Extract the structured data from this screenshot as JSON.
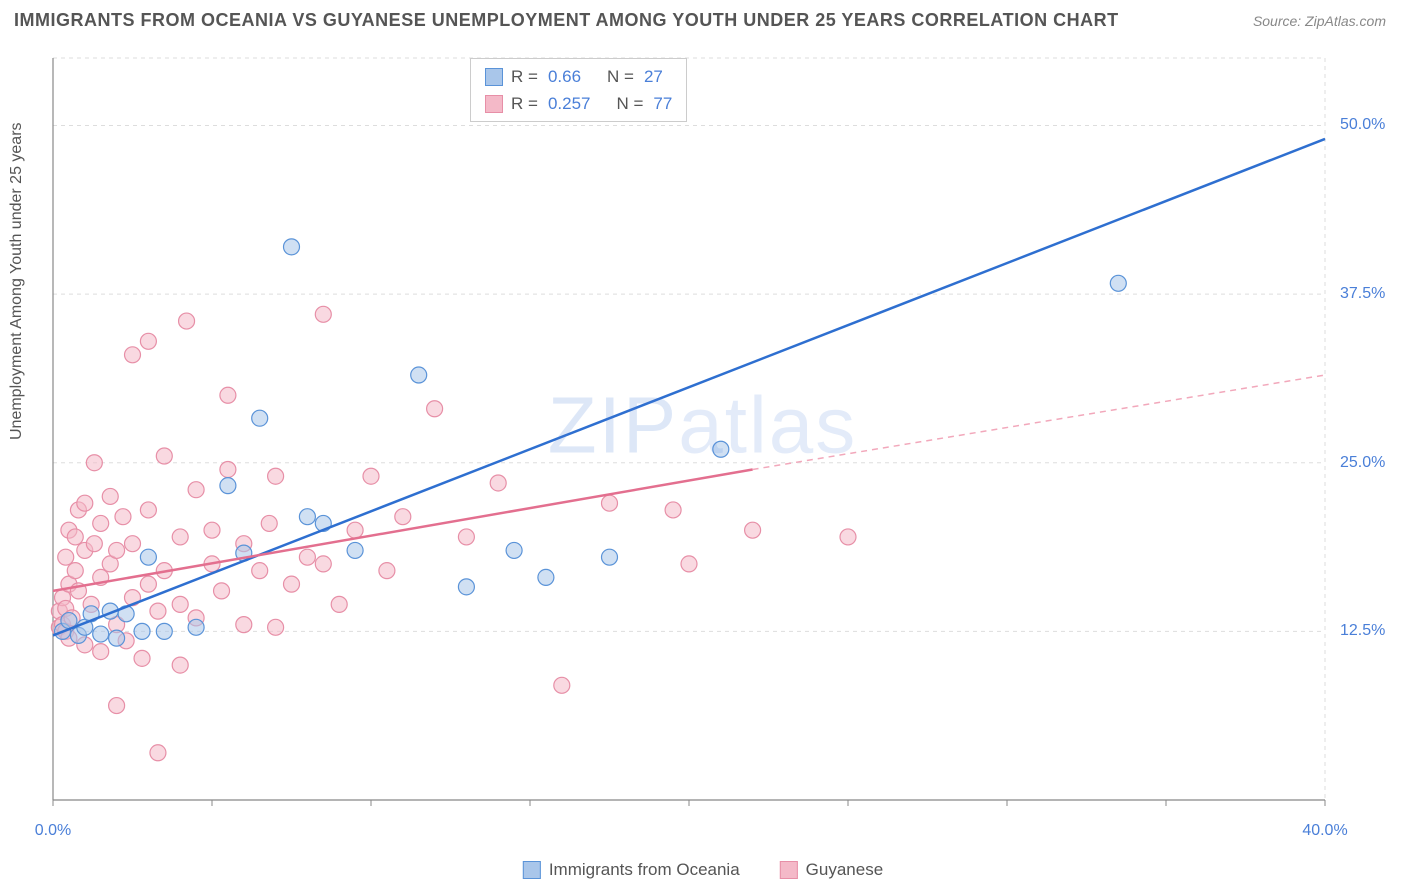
{
  "header": {
    "title": "IMMIGRANTS FROM OCEANIA VS GUYANESE UNEMPLOYMENT AMONG YOUTH UNDER 25 YEARS CORRELATION CHART",
    "source": "Source: ZipAtlas.com"
  },
  "watermark": {
    "bold": "ZIP",
    "light": "atlas"
  },
  "chart": {
    "type": "scatter",
    "y_axis_label": "Unemployment Among Youth under 25 years",
    "background_color": "#ffffff",
    "grid_color": "#dddddd",
    "axis_color": "#888888",
    "xlim": [
      0,
      40
    ],
    "ylim": [
      0,
      55
    ],
    "x_ticks": [
      {
        "v": 0,
        "label": "0.0%"
      },
      {
        "v": 40,
        "label": "40.0%"
      }
    ],
    "y_ticks": [
      {
        "v": 12.5,
        "label": "12.5%"
      },
      {
        "v": 25.0,
        "label": "25.0%"
      },
      {
        "v": 37.5,
        "label": "37.5%"
      },
      {
        "v": 50.0,
        "label": "50.0%"
      }
    ],
    "x_minor_tick_step": 5,
    "marker_radius": 8,
    "marker_opacity": 0.55,
    "line_width": 2.5,
    "series": [
      {
        "name": "Immigrants from Oceania",
        "color": "#5a93d8",
        "fill": "#a9c6ea",
        "stroke": "#5a93d8",
        "r": 0.66,
        "n": 27,
        "trend": {
          "x1": 0,
          "y1": 12.2,
          "x2": 40,
          "y2": 49.0,
          "dash": "none",
          "color": "#2e6fd0"
        },
        "points": [
          [
            0.3,
            12.5
          ],
          [
            0.5,
            13.3
          ],
          [
            0.8,
            12.2
          ],
          [
            1.0,
            12.8
          ],
          [
            1.2,
            13.8
          ],
          [
            1.5,
            12.3
          ],
          [
            1.8,
            14.0
          ],
          [
            2.0,
            12.0
          ],
          [
            2.3,
            13.8
          ],
          [
            2.8,
            12.5
          ],
          [
            3.0,
            18.0
          ],
          [
            3.5,
            12.5
          ],
          [
            4.5,
            12.8
          ],
          [
            5.5,
            23.3
          ],
          [
            6.0,
            18.3
          ],
          [
            6.5,
            28.3
          ],
          [
            7.5,
            41.0
          ],
          [
            8.0,
            21.0
          ],
          [
            8.5,
            20.5
          ],
          [
            9.5,
            18.5
          ],
          [
            11.5,
            31.5
          ],
          [
            13.0,
            15.8
          ],
          [
            14.5,
            18.5
          ],
          [
            15.5,
            16.5
          ],
          [
            17.5,
            18.0
          ],
          [
            21.0,
            26.0
          ],
          [
            33.5,
            38.3
          ]
        ]
      },
      {
        "name": "Guyanese",
        "color": "#e78fa7",
        "fill": "#f4b9c8",
        "stroke": "#e78fa7",
        "r": 0.257,
        "n": 77,
        "trend": {
          "x1": 0,
          "y1": 15.5,
          "x2": 22,
          "y2": 24.5,
          "dash": "none",
          "color": "#e36f8f"
        },
        "trend_ext": {
          "x1": 22,
          "y1": 24.5,
          "x2": 40,
          "y2": 31.5,
          "dash": "6 5",
          "color": "#f2a8bb"
        },
        "points": [
          [
            0.2,
            12.8
          ],
          [
            0.2,
            14.0
          ],
          [
            0.3,
            13.0
          ],
          [
            0.3,
            15.0
          ],
          [
            0.4,
            12.5
          ],
          [
            0.4,
            14.2
          ],
          [
            0.4,
            18.0
          ],
          [
            0.5,
            12.0
          ],
          [
            0.5,
            16.0
          ],
          [
            0.5,
            20.0
          ],
          [
            0.6,
            13.5
          ],
          [
            0.7,
            17.0
          ],
          [
            0.7,
            19.5
          ],
          [
            0.8,
            15.5
          ],
          [
            0.8,
            21.5
          ],
          [
            1.0,
            11.5
          ],
          [
            1.0,
            18.5
          ],
          [
            1.0,
            22.0
          ],
          [
            1.2,
            14.5
          ],
          [
            1.3,
            19.0
          ],
          [
            1.3,
            25.0
          ],
          [
            1.5,
            11.0
          ],
          [
            1.5,
            16.5
          ],
          [
            1.5,
            20.5
          ],
          [
            1.8,
            17.5
          ],
          [
            1.8,
            22.5
          ],
          [
            2.0,
            7.0
          ],
          [
            2.0,
            13.0
          ],
          [
            2.0,
            18.5
          ],
          [
            2.2,
            21.0
          ],
          [
            2.3,
            11.8
          ],
          [
            2.5,
            15.0
          ],
          [
            2.5,
            19.0
          ],
          [
            2.5,
            33.0
          ],
          [
            2.8,
            10.5
          ],
          [
            3.0,
            16.0
          ],
          [
            3.0,
            21.5
          ],
          [
            3.0,
            34.0
          ],
          [
            3.3,
            14.0
          ],
          [
            3.3,
            3.5
          ],
          [
            3.5,
            17.0
          ],
          [
            3.5,
            25.5
          ],
          [
            4.0,
            10.0
          ],
          [
            4.0,
            14.5
          ],
          [
            4.0,
            19.5
          ],
          [
            4.2,
            35.5
          ],
          [
            4.5,
            13.5
          ],
          [
            4.5,
            23.0
          ],
          [
            5.0,
            17.5
          ],
          [
            5.0,
            20.0
          ],
          [
            5.3,
            15.5
          ],
          [
            5.5,
            24.5
          ],
          [
            5.5,
            30.0
          ],
          [
            6.0,
            13.0
          ],
          [
            6.0,
            19.0
          ],
          [
            6.5,
            17.0
          ],
          [
            6.8,
            20.5
          ],
          [
            7.0,
            12.8
          ],
          [
            7.0,
            24.0
          ],
          [
            7.5,
            16.0
          ],
          [
            8.0,
            18.0
          ],
          [
            8.5,
            17.5
          ],
          [
            8.5,
            36.0
          ],
          [
            9.0,
            14.5
          ],
          [
            9.5,
            20.0
          ],
          [
            10.0,
            24.0
          ],
          [
            10.5,
            17.0
          ],
          [
            11.0,
            21.0
          ],
          [
            12.0,
            29.0
          ],
          [
            13.0,
            19.5
          ],
          [
            14.0,
            23.5
          ],
          [
            16.0,
            8.5
          ],
          [
            17.5,
            22.0
          ],
          [
            19.5,
            21.5
          ],
          [
            20.0,
            17.5
          ],
          [
            22.0,
            20.0
          ],
          [
            25.0,
            19.5
          ]
        ]
      }
    ]
  },
  "corr_legend_labels": {
    "r": "R =",
    "n": "N ="
  },
  "bottom_legend": [
    {
      "label": "Immigrants from Oceania",
      "fill": "#a9c6ea",
      "stroke": "#5a93d8"
    },
    {
      "label": "Guyanese",
      "fill": "#f4b9c8",
      "stroke": "#e78fa7"
    }
  ]
}
